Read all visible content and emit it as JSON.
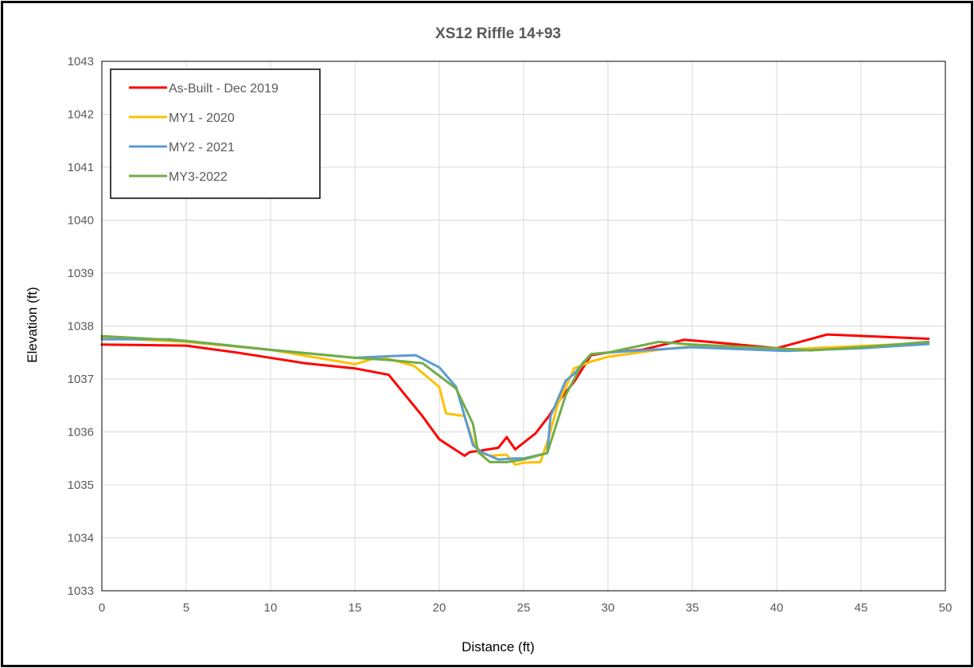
{
  "chart_data": {
    "type": "line",
    "title": "XS12 Riffle 14+93",
    "xlabel": "Distance (ft)",
    "ylabel": "Elevation (ft)",
    "xlim": [
      0,
      50
    ],
    "ylim": [
      1033,
      1043
    ],
    "x_ticks": [
      "0",
      "5",
      "10",
      "15",
      "20",
      "25",
      "30",
      "35",
      "40",
      "45",
      "50"
    ],
    "y_ticks": [
      "1033",
      "1034",
      "1035",
      "1036",
      "1037",
      "1038",
      "1039",
      "1040",
      "1041",
      "1042",
      "1043"
    ],
    "grid": "horizontal and vertical",
    "legend_position": "top-left",
    "series": [
      {
        "name": "As-Built - Dec 2019",
        "color": "#ff0000",
        "points": [
          [
            0,
            1037.65
          ],
          [
            5,
            1037.63
          ],
          [
            8,
            1037.5
          ],
          [
            12,
            1037.3
          ],
          [
            15,
            1037.2
          ],
          [
            17,
            1037.08
          ],
          [
            19,
            1036.3
          ],
          [
            20,
            1035.86
          ],
          [
            21.5,
            1035.55
          ],
          [
            21.8,
            1035.62
          ],
          [
            22.5,
            1035.65
          ],
          [
            23.5,
            1035.7
          ],
          [
            24,
            1035.9
          ],
          [
            24.5,
            1035.67
          ],
          [
            25.7,
            1035.97
          ],
          [
            26.5,
            1036.3
          ],
          [
            27,
            1036.55
          ],
          [
            28,
            1036.95
          ],
          [
            29,
            1037.45
          ],
          [
            30,
            1037.5
          ],
          [
            32,
            1037.55
          ],
          [
            34.5,
            1037.74
          ],
          [
            36,
            1037.7
          ],
          [
            40,
            1037.58
          ],
          [
            43,
            1037.84
          ],
          [
            49,
            1037.76
          ]
        ]
      },
      {
        "name": "MY1 - 2020",
        "color": "#ffc000",
        "points": [
          [
            0,
            1037.78
          ],
          [
            5,
            1037.7
          ],
          [
            10,
            1037.55
          ],
          [
            15,
            1037.28
          ],
          [
            16.5,
            1037.42
          ],
          [
            18.5,
            1037.25
          ],
          [
            20,
            1036.85
          ],
          [
            20.4,
            1036.35
          ],
          [
            21.5,
            1036.3
          ],
          [
            22,
            1035.82
          ],
          [
            22.5,
            1035.6
          ],
          [
            23,
            1035.55
          ],
          [
            24,
            1035.57
          ],
          [
            24.5,
            1035.38
          ],
          [
            25,
            1035.42
          ],
          [
            26,
            1035.43
          ],
          [
            26.5,
            1035.9
          ],
          [
            27,
            1036.5
          ],
          [
            28,
            1037.2
          ],
          [
            29,
            1037.33
          ],
          [
            30,
            1037.42
          ],
          [
            33,
            1037.55
          ],
          [
            35,
            1037.62
          ],
          [
            40,
            1037.55
          ],
          [
            42,
            1037.58
          ],
          [
            49,
            1037.68
          ]
        ]
      },
      {
        "name": "MY2 - 2021",
        "color": "#5b9bd5",
        "points": [
          [
            0,
            1037.75
          ],
          [
            4,
            1037.75
          ],
          [
            10,
            1037.55
          ],
          [
            15,
            1037.4
          ],
          [
            17,
            1037.43
          ],
          [
            18.6,
            1037.45
          ],
          [
            20,
            1037.22
          ],
          [
            21,
            1036.85
          ],
          [
            22,
            1035.75
          ],
          [
            22.5,
            1035.62
          ],
          [
            23.5,
            1035.48
          ],
          [
            24.5,
            1035.5
          ],
          [
            25,
            1035.5
          ],
          [
            26.4,
            1035.6
          ],
          [
            26.6,
            1036.3
          ],
          [
            27.5,
            1036.97
          ],
          [
            28,
            1037.1
          ],
          [
            29,
            1037.47
          ],
          [
            30,
            1037.5
          ],
          [
            35,
            1037.6
          ],
          [
            40.5,
            1037.53
          ],
          [
            45,
            1037.58
          ],
          [
            49,
            1037.66
          ]
        ]
      },
      {
        "name": "MY3-2022",
        "color": "#70ad47",
        "points": [
          [
            0,
            1037.81
          ],
          [
            5,
            1037.72
          ],
          [
            10,
            1037.55
          ],
          [
            15,
            1037.4
          ],
          [
            17,
            1037.36
          ],
          [
            19,
            1037.3
          ],
          [
            21,
            1036.82
          ],
          [
            22,
            1036.15
          ],
          [
            22.3,
            1035.62
          ],
          [
            23,
            1035.43
          ],
          [
            24,
            1035.43
          ],
          [
            25,
            1035.48
          ],
          [
            26.4,
            1035.6
          ],
          [
            27.5,
            1036.7
          ],
          [
            28.5,
            1037.3
          ],
          [
            29,
            1037.47
          ],
          [
            30,
            1037.5
          ],
          [
            33,
            1037.7
          ],
          [
            35,
            1037.65
          ],
          [
            40,
            1037.58
          ],
          [
            42,
            1037.54
          ],
          [
            45,
            1037.6
          ],
          [
            49,
            1037.7
          ]
        ]
      }
    ]
  }
}
